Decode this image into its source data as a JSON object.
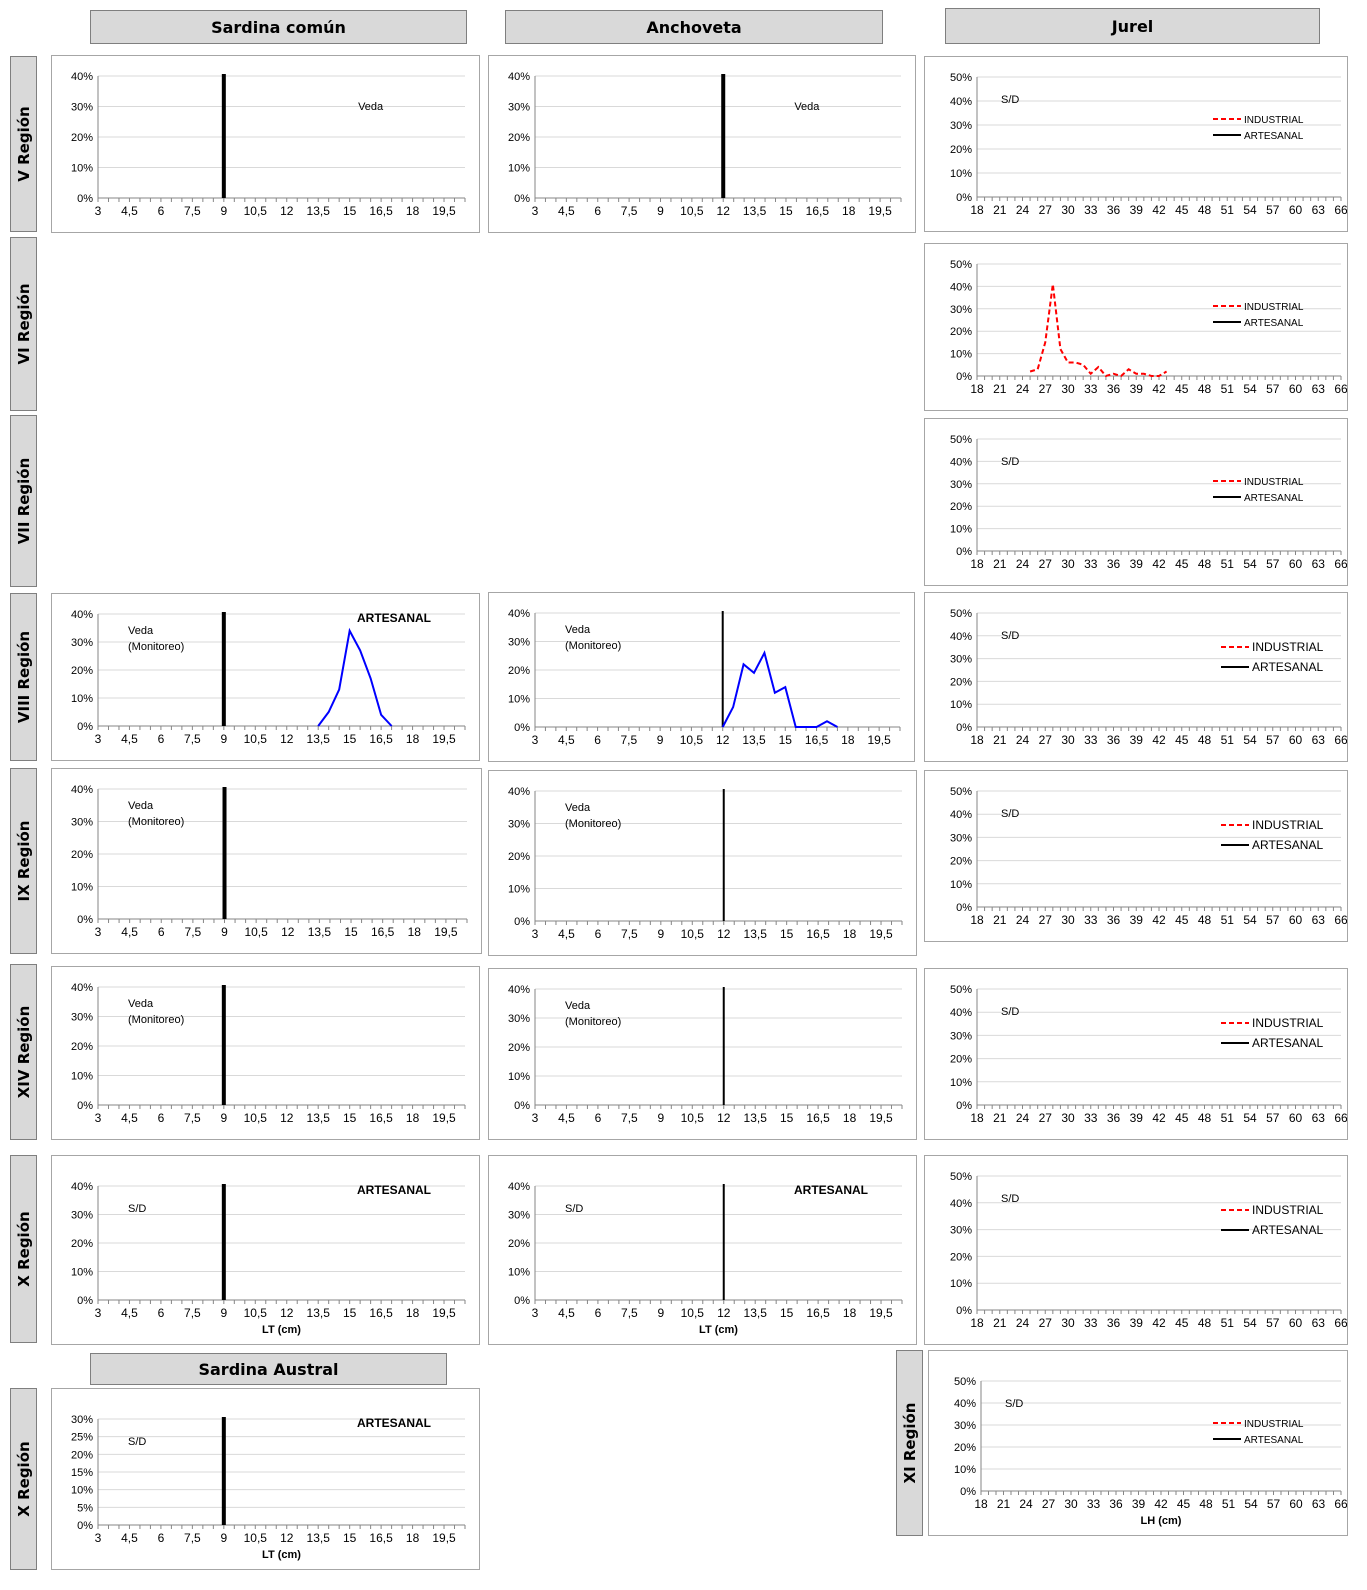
{
  "columns": {
    "sardina": "Sardina común",
    "anchoveta": "Anchoveta",
    "jurel": "Jurel",
    "austral": "Sardina Austral"
  },
  "regions": {
    "v": "V Región",
    "vi": "VI Región",
    "vii": "VII  Región",
    "viii": "VIII Región",
    "ix": "IX Región",
    "xiv": "XIV Región",
    "x": "X Región",
    "x2": "X Región",
    "xi": "XI Región"
  },
  "colors": {
    "industrial": "#ff0000",
    "artesanal_sardina": "#0000ff",
    "artesanal_jurel": "#000000",
    "grid": "#d9d9d9",
    "axis": "#868686"
  },
  "chart_data": [
    {
      "id": "sardina-v",
      "type": "line",
      "region": "V Región",
      "species": "Sardina común",
      "x_ticks": [
        "3",
        "4,5",
        "6",
        "7,5",
        "9",
        "10,5",
        "12",
        "13,5",
        "15",
        "16,5",
        "18",
        "19,5"
      ],
      "y_ticks": [
        "0%",
        "10%",
        "20%",
        "30%",
        "40%"
      ],
      "xlim": [
        3,
        20.5
      ],
      "ylim": [
        0,
        40
      ],
      "reference_line": 9,
      "annotations": [
        "Veda"
      ],
      "series": []
    },
    {
      "id": "anchoveta-v",
      "type": "line",
      "region": "V Región",
      "species": "Anchoveta",
      "x_ticks": [
        "3",
        "4,5",
        "6",
        "7,5",
        "9",
        "10,5",
        "12",
        "13,5",
        "15",
        "16,5",
        "18",
        "19,5"
      ],
      "y_ticks": [
        "0%",
        "10%",
        "20%",
        "30%",
        "40%"
      ],
      "xlim": [
        3,
        20.5
      ],
      "ylim": [
        0,
        40
      ],
      "reference_line": 12,
      "annotations": [
        "Veda"
      ],
      "series": []
    },
    {
      "id": "jurel-v",
      "type": "line",
      "region": "V Región",
      "species": "Jurel",
      "x_ticks": [
        "18",
        "21",
        "24",
        "27",
        "30",
        "33",
        "36",
        "39",
        "42",
        "45",
        "48",
        "51",
        "54",
        "57",
        "60",
        "63",
        "66"
      ],
      "y_ticks": [
        "0%",
        "10%",
        "20%",
        "30%",
        "40%",
        "50%"
      ],
      "xlim": [
        18,
        66
      ],
      "ylim": [
        0,
        50
      ],
      "annotations": [
        "S/D"
      ],
      "legend": [
        "INDUSTRIAL",
        "ARTESANAL"
      ],
      "series": []
    },
    {
      "id": "jurel-vi",
      "type": "line",
      "region": "VI Región",
      "species": "Jurel",
      "x_ticks": [
        "18",
        "21",
        "24",
        "27",
        "30",
        "33",
        "36",
        "39",
        "42",
        "45",
        "48",
        "51",
        "54",
        "57",
        "60",
        "63",
        "66"
      ],
      "y_ticks": [
        "0%",
        "10%",
        "20%",
        "30%",
        "40%",
        "50%"
      ],
      "xlim": [
        18,
        66
      ],
      "ylim": [
        0,
        50
      ],
      "legend": [
        "INDUSTRIAL",
        "ARTESANAL"
      ],
      "series": [
        {
          "name": "INDUSTRIAL",
          "style": "dashed",
          "color": "#ff0000",
          "x": [
            25,
            26,
            27,
            28,
            29,
            30,
            31,
            32,
            33,
            34,
            35,
            36,
            37,
            38,
            39,
            40,
            41,
            42,
            43
          ],
          "y": [
            2,
            3,
            15,
            41,
            12,
            6,
            6,
            5,
            1,
            4,
            0,
            1,
            0,
            3,
            1,
            1,
            0,
            0,
            2
          ]
        }
      ]
    },
    {
      "id": "jurel-vii",
      "type": "line",
      "region": "VII  Región",
      "species": "Jurel",
      "x_ticks": [
        "18",
        "21",
        "24",
        "27",
        "30",
        "33",
        "36",
        "39",
        "42",
        "45",
        "48",
        "51",
        "54",
        "57",
        "60",
        "63",
        "66"
      ],
      "y_ticks": [
        "0%",
        "10%",
        "20%",
        "30%",
        "40%",
        "50%"
      ],
      "xlim": [
        18,
        66
      ],
      "ylim": [
        0,
        50
      ],
      "annotations": [
        "S/D"
      ],
      "legend": [
        "INDUSTRIAL",
        "ARTESANAL"
      ],
      "series": []
    },
    {
      "id": "sardina-viii",
      "type": "line",
      "region": "VIII Región",
      "species": "Sardina común",
      "x_ticks": [
        "3",
        "4,5",
        "6",
        "7,5",
        "9",
        "10,5",
        "12",
        "13,5",
        "15",
        "16,5",
        "18",
        "19,5"
      ],
      "y_ticks": [
        "0%",
        "10%",
        "20%",
        "30%",
        "40%"
      ],
      "xlim": [
        3,
        20.5
      ],
      "ylim": [
        0,
        40
      ],
      "reference_line": 9,
      "annotations": [
        "Veda",
        "(Monitoreo)",
        "ARTESANAL"
      ],
      "series": [
        {
          "name": "ARTESANAL",
          "color": "#0000ff",
          "x": [
            13.5,
            14,
            14.5,
            15,
            15.5,
            16,
            16.5,
            17
          ],
          "y": [
            0,
            5,
            13,
            34,
            27,
            17,
            4,
            0
          ]
        }
      ]
    },
    {
      "id": "anchoveta-viii",
      "type": "line",
      "region": "VIII Región",
      "species": "Anchoveta",
      "x_ticks": [
        "3",
        "4,5",
        "6",
        "7,5",
        "9",
        "10,5",
        "12",
        "13,5",
        "15",
        "16,5",
        "18",
        "19,5"
      ],
      "y_ticks": [
        "0%",
        "10%",
        "20%",
        "30%",
        "40%"
      ],
      "xlim": [
        3,
        20.5
      ],
      "ylim": [
        0,
        40
      ],
      "reference_line": 12,
      "annotations": [
        "Veda",
        "(Monitoreo)"
      ],
      "series": [
        {
          "color": "#0000ff",
          "x": [
            12,
            12.5,
            13,
            13.5,
            14,
            14.5,
            15,
            15.5,
            16,
            16.5,
            17,
            17.5
          ],
          "y": [
            0,
            7,
            22,
            19,
            26,
            12,
            14,
            0,
            0,
            0,
            2,
            0
          ]
        }
      ]
    },
    {
      "id": "jurel-viii",
      "type": "line",
      "region": "VIII Región",
      "species": "Jurel",
      "x_ticks": [
        "18",
        "21",
        "24",
        "27",
        "30",
        "33",
        "36",
        "39",
        "42",
        "45",
        "48",
        "51",
        "54",
        "57",
        "60",
        "63",
        "66"
      ],
      "y_ticks": [
        "0%",
        "10%",
        "20%",
        "30%",
        "40%",
        "50%"
      ],
      "xlim": [
        18,
        66
      ],
      "ylim": [
        0,
        50
      ],
      "annotations": [
        "S/D"
      ],
      "legend": [
        "INDUSTRIAL",
        "ARTESANAL"
      ],
      "series": []
    },
    {
      "id": "sardina-ix",
      "type": "line",
      "region": "IX Región",
      "species": "Sardina común",
      "x_ticks": [
        "3",
        "4,5",
        "6",
        "7,5",
        "9",
        "10,5",
        "12",
        "13,5",
        "15",
        "16,5",
        "18",
        "19,5"
      ],
      "y_ticks": [
        "0%",
        "10%",
        "20%",
        "30%",
        "40%"
      ],
      "xlim": [
        3,
        20.5
      ],
      "ylim": [
        0,
        40
      ],
      "reference_line": 9,
      "annotations": [
        "Veda",
        "(Monitoreo)"
      ],
      "series": []
    },
    {
      "id": "anchoveta-ix",
      "type": "line",
      "region": "IX Región",
      "species": "Anchoveta",
      "x_ticks": [
        "3",
        "4,5",
        "6",
        "7,5",
        "9",
        "10,5",
        "12",
        "13,5",
        "15",
        "16,5",
        "18",
        "19,5"
      ],
      "y_ticks": [
        "0%",
        "10%",
        "20%",
        "30%",
        "40%"
      ],
      "xlim": [
        3,
        20.5
      ],
      "ylim": [
        0,
        40
      ],
      "reference_line": 12,
      "annotations": [
        "Veda",
        "(Monitoreo)"
      ],
      "series": []
    },
    {
      "id": "jurel-ix",
      "type": "line",
      "region": "IX Región",
      "species": "Jurel",
      "x_ticks": [
        "18",
        "21",
        "24",
        "27",
        "30",
        "33",
        "36",
        "39",
        "42",
        "45",
        "48",
        "51",
        "54",
        "57",
        "60",
        "63",
        "66"
      ],
      "y_ticks": [
        "0%",
        "10%",
        "20%",
        "30%",
        "40%",
        "50%"
      ],
      "xlim": [
        18,
        66
      ],
      "ylim": [
        0,
        50
      ],
      "annotations": [
        "S/D"
      ],
      "legend": [
        "INDUSTRIAL",
        "ARTESANAL"
      ],
      "series": []
    },
    {
      "id": "sardina-xiv",
      "type": "line",
      "region": "XIV Región",
      "species": "Sardina común",
      "x_ticks": [
        "3",
        "4,5",
        "6",
        "7,5",
        "9",
        "10,5",
        "12",
        "13,5",
        "15",
        "16,5",
        "18",
        "19,5"
      ],
      "y_ticks": [
        "0%",
        "10%",
        "20%",
        "30%",
        "40%"
      ],
      "xlim": [
        3,
        20.5
      ],
      "ylim": [
        0,
        40
      ],
      "reference_line": 9,
      "annotations": [
        "Veda",
        "(Monitoreo)"
      ],
      "series": []
    },
    {
      "id": "anchoveta-xiv",
      "type": "line",
      "region": "XIV Región",
      "species": "Anchoveta",
      "x_ticks": [
        "3",
        "4,5",
        "6",
        "7,5",
        "9",
        "10,5",
        "12",
        "13,5",
        "15",
        "16,5",
        "18",
        "19,5"
      ],
      "y_ticks": [
        "0%",
        "10%",
        "20%",
        "30%",
        "40%"
      ],
      "xlim": [
        3,
        20.5
      ],
      "ylim": [
        0,
        40
      ],
      "reference_line": 12,
      "annotations": [
        "Veda",
        "(Monitoreo)"
      ],
      "series": []
    },
    {
      "id": "jurel-xiv",
      "type": "line",
      "region": "XIV Región",
      "species": "Jurel",
      "x_ticks": [
        "18",
        "21",
        "24",
        "27",
        "30",
        "33",
        "36",
        "39",
        "42",
        "45",
        "48",
        "51",
        "54",
        "57",
        "60",
        "63",
        "66"
      ],
      "y_ticks": [
        "0%",
        "10%",
        "20%",
        "30%",
        "40%",
        "50%"
      ],
      "xlim": [
        18,
        66
      ],
      "ylim": [
        0,
        50
      ],
      "annotations": [
        "S/D"
      ],
      "legend": [
        "INDUSTRIAL",
        "ARTESANAL"
      ],
      "series": []
    },
    {
      "id": "sardina-x",
      "type": "line",
      "region": "X Región",
      "species": "Sardina común",
      "x_ticks": [
        "3",
        "4,5",
        "6",
        "7,5",
        "9",
        "10,5",
        "12",
        "13,5",
        "15",
        "16,5",
        "18",
        "19,5"
      ],
      "y_ticks": [
        "0%",
        "10%",
        "20%",
        "30%",
        "40%"
      ],
      "xlim": [
        3,
        20.5
      ],
      "ylim": [
        0,
        40
      ],
      "reference_line": 9,
      "annotations": [
        "S/D",
        "ARTESANAL"
      ],
      "xlabel": "LT (cm)",
      "series": []
    },
    {
      "id": "anchoveta-x",
      "type": "line",
      "region": "X Región",
      "species": "Anchoveta",
      "x_ticks": [
        "3",
        "4,5",
        "6",
        "7,5",
        "9",
        "10,5",
        "12",
        "13,5",
        "15",
        "16,5",
        "18",
        "19,5"
      ],
      "y_ticks": [
        "0%",
        "10%",
        "20%",
        "30%",
        "40%"
      ],
      "xlim": [
        3,
        20.5
      ],
      "ylim": [
        0,
        40
      ],
      "reference_line": 12,
      "annotations": [
        "S/D",
        "ARTESANAL"
      ],
      "xlabel": "LT (cm)",
      "series": []
    },
    {
      "id": "jurel-x",
      "type": "line",
      "region": "X Región",
      "species": "Jurel",
      "x_ticks": [
        "18",
        "21",
        "24",
        "27",
        "30",
        "33",
        "36",
        "39",
        "42",
        "45",
        "48",
        "51",
        "54",
        "57",
        "60",
        "63",
        "66"
      ],
      "y_ticks": [
        "0%",
        "10%",
        "20%",
        "30%",
        "40%",
        "50%"
      ],
      "xlim": [
        18,
        66
      ],
      "ylim": [
        0,
        50
      ],
      "annotations": [
        "S/D"
      ],
      "legend": [
        "INDUSTRIAL",
        "ARTESANAL"
      ],
      "series": []
    },
    {
      "id": "austral-x",
      "type": "line",
      "region": "X Región",
      "species": "Sardina Austral",
      "x_ticks": [
        "3",
        "4,5",
        "6",
        "7,5",
        "9",
        "10,5",
        "12",
        "13,5",
        "15",
        "16,5",
        "18",
        "19,5"
      ],
      "y_ticks": [
        "0%",
        "5%",
        "10%",
        "15%",
        "20%",
        "25%",
        "30%"
      ],
      "xlim": [
        3,
        20.5
      ],
      "ylim": [
        0,
        30
      ],
      "reference_line": 9,
      "annotations": [
        "S/D",
        "ARTESANAL"
      ],
      "xlabel": "LT (cm)",
      "series": []
    },
    {
      "id": "jurel-xi",
      "type": "line",
      "region": "XI Región",
      "species": "Jurel",
      "x_ticks": [
        "18",
        "21",
        "24",
        "27",
        "30",
        "33",
        "36",
        "39",
        "42",
        "45",
        "48",
        "51",
        "54",
        "57",
        "60",
        "63",
        "66"
      ],
      "y_ticks": [
        "0%",
        "10%",
        "20%",
        "30%",
        "40%",
        "50%"
      ],
      "xlim": [
        18,
        66
      ],
      "ylim": [
        0,
        50
      ],
      "annotations": [
        "S/D"
      ],
      "legend": [
        "INDUSTRIAL",
        "ARTESANAL"
      ],
      "xlabel": "LH (cm)",
      "series": []
    }
  ]
}
